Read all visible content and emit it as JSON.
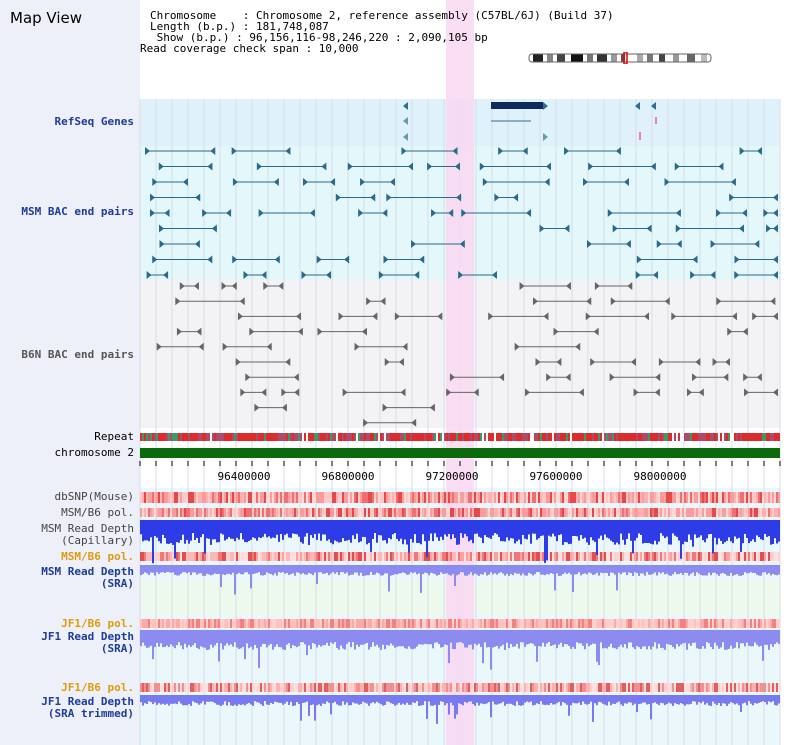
{
  "header": {
    "title": "Map View",
    "info_rows": [
      "Chromosome    : Chromosome 2, reference assembly (C57BL/6J) (Build 37)",
      "Length (b.p.) : 181,748,087",
      " Show (b.p.) : 96,156,116-98,246,220 : 2,090,105 bp",
      "Read coverage check span : 10,000"
    ]
  },
  "tracks": {
    "refseq_label": "RefSeq Genes",
    "msm_bac_label": "MSM BAC end pairs",
    "b6n_bac_label": "B6N BAC end pairs",
    "repeat_label": "Repeat",
    "chromosome_label": "chromosome 2",
    "dbsnp_label": "dbSNP(Mouse)",
    "msm_b6_pol_label": "MSM/B6 pol.",
    "msm_depth_cap_label_1": "MSM Read Depth",
    "msm_depth_cap_label_2": "(Capillary)",
    "msm_b6_pol2_label": "MSM/B6 pol.",
    "msm_depth_sra_label_1": "MSM Read Depth",
    "msm_depth_sra_label_2": "(SRA)",
    "jf1_b6_pol_label": "JF1/B6 pol.",
    "jf1_depth_sra_label_1": "JF1 Read Depth",
    "jf1_depth_sra_label_2": "(SRA)",
    "jf1_b6_pol2_label": "JF1/B6 pol.",
    "jf1_depth_trim_label_1": "JF1 Read Depth",
    "jf1_depth_trim_label_2": "(SRA trimmed)"
  },
  "axis": {
    "ticks": [
      "96400000",
      "96800000",
      "97200000",
      "97600000",
      "98000000"
    ]
  },
  "colors": {
    "gutter": "#eef0f9",
    "refseq_bg": "#dff1fb",
    "msm_bg": "#e4f8fb",
    "b6n_bg": "#f3f3f6",
    "highlight": "#f9d8f2",
    "msm_label": "#1c3c9c",
    "orange_label": "#e09a10",
    "chromosome_bar": "#0c6a0c",
    "depth_blue": "#2d3ce6",
    "depth_light": "#8c8cf0"
  }
}
